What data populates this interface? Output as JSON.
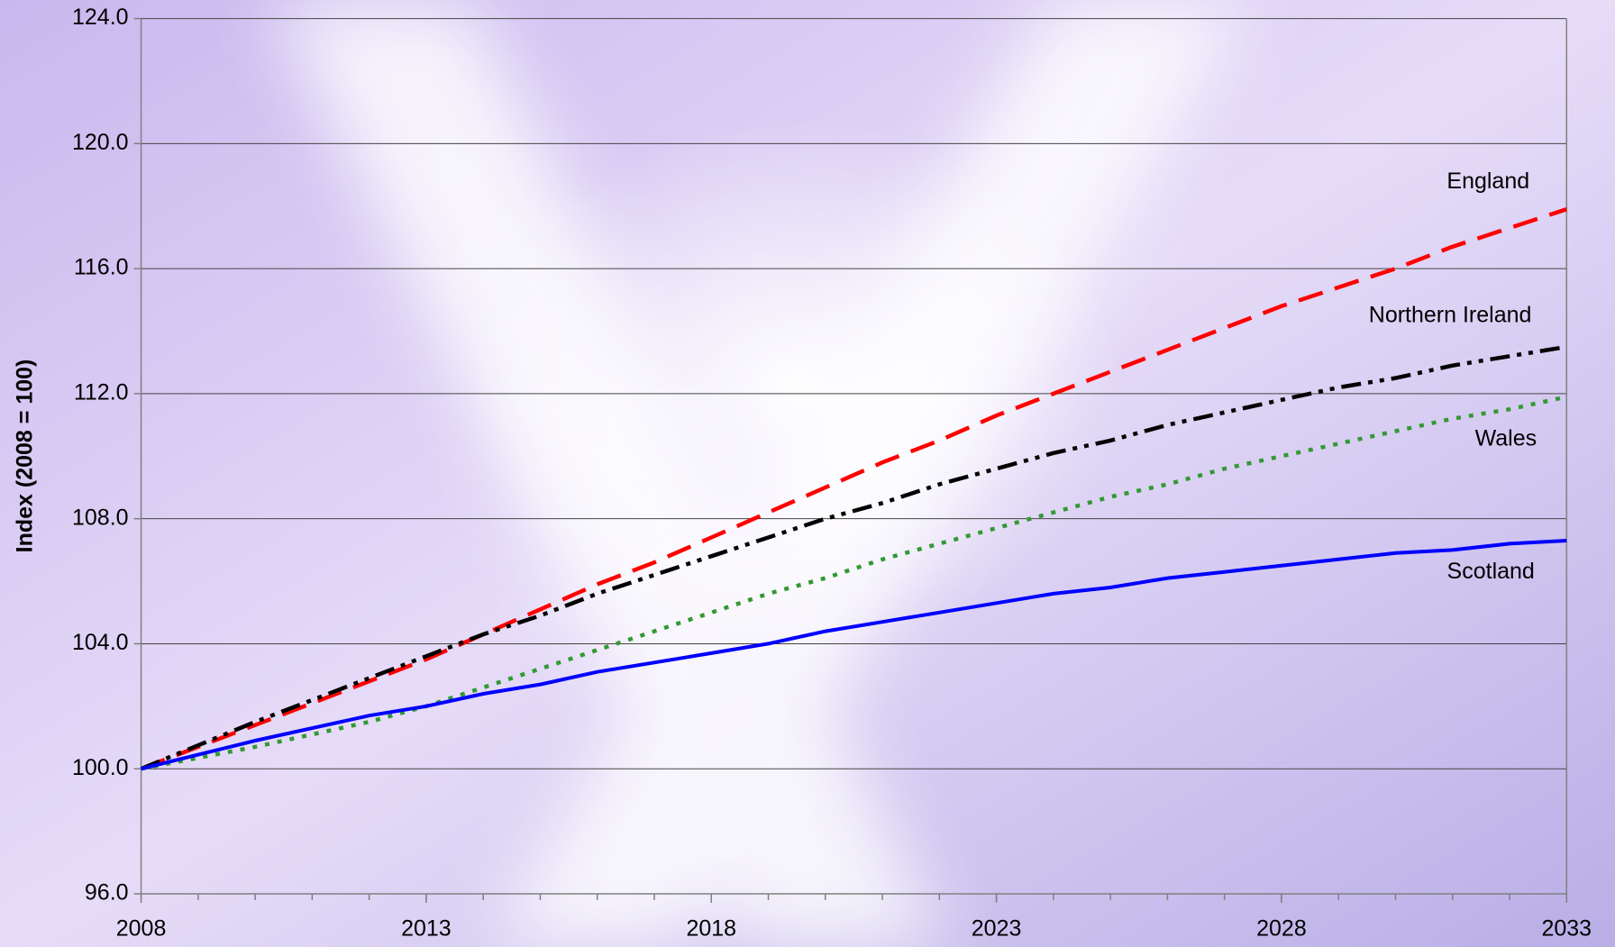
{
  "chart_data": {
    "type": "line",
    "y_label": "Index (2008 = 100)",
    "x": [
      2008,
      2009,
      2010,
      2011,
      2012,
      2013,
      2014,
      2015,
      2016,
      2017,
      2018,
      2019,
      2020,
      2021,
      2022,
      2023,
      2024,
      2025,
      2026,
      2027,
      2028,
      2029,
      2030,
      2031,
      2032,
      2033
    ],
    "xlim": [
      2008,
      2033
    ],
    "xticks": [
      2008,
      2013,
      2018,
      2023,
      2028,
      2033
    ],
    "ylim": [
      96,
      124
    ],
    "yticks": [
      {
        "value": 96,
        "label": "96.0"
      },
      {
        "value": 100,
        "label": "100.0"
      },
      {
        "value": 104,
        "label": "104.0"
      },
      {
        "value": 108,
        "label": "108.0"
      },
      {
        "value": 112,
        "label": "112.0"
      },
      {
        "value": 116,
        "label": "116.0"
      },
      {
        "value": 120,
        "label": "120.0"
      },
      {
        "value": 124,
        "label": "124.0"
      }
    ],
    "grid": true,
    "series": [
      {
        "name": "England",
        "color": "#ff0000",
        "line_style": "dashed",
        "values": [
          100,
          100.7,
          101.4,
          102.1,
          102.8,
          103.5,
          104.3,
          105.1,
          105.9,
          106.6,
          107.4,
          108.2,
          109.0,
          109.8,
          110.5,
          111.3,
          112.0,
          112.7,
          113.4,
          114.1,
          114.8,
          115.4,
          116.0,
          116.7,
          117.3,
          117.9
        ]
      },
      {
        "name": "Northern Ireland",
        "color": "#000000",
        "line_style": "dash-dot-dot",
        "values": [
          100,
          100.75,
          101.5,
          102.2,
          102.9,
          103.6,
          104.3,
          104.9,
          105.6,
          106.2,
          106.8,
          107.4,
          108.0,
          108.5,
          109.1,
          109.6,
          110.1,
          110.5,
          111.0,
          111.4,
          111.8,
          112.2,
          112.5,
          112.9,
          113.2,
          113.5
        ]
      },
      {
        "name": "Wales",
        "color": "#339933",
        "line_style": "dotted",
        "values": [
          100,
          100.35,
          100.7,
          101.1,
          101.5,
          102.0,
          102.6,
          103.2,
          103.8,
          104.4,
          105.0,
          105.6,
          106.1,
          106.7,
          107.2,
          107.7,
          108.2,
          108.7,
          109.1,
          109.6,
          110.0,
          110.4,
          110.8,
          111.2,
          111.5,
          111.9
        ]
      },
      {
        "name": "Scotland",
        "color": "#0000ff",
        "line_style": "solid",
        "values": [
          100,
          100.45,
          100.9,
          101.3,
          101.7,
          102.0,
          102.4,
          102.7,
          103.1,
          103.4,
          103.7,
          104.0,
          104.4,
          104.7,
          105.0,
          105.3,
          105.6,
          105.8,
          106.1,
          106.3,
          106.5,
          106.7,
          106.9,
          107.0,
          107.2,
          107.3
        ]
      }
    ]
  }
}
